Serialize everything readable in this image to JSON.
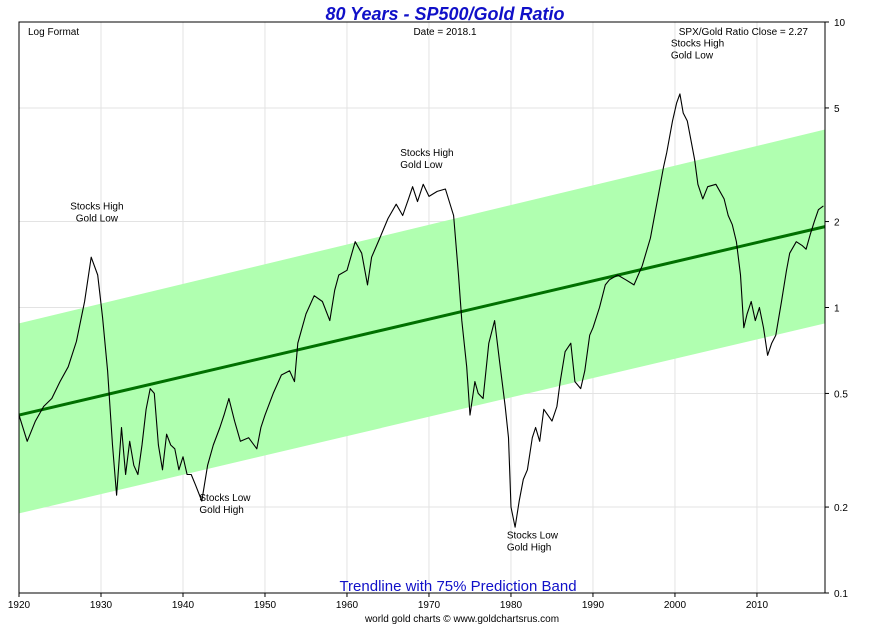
{
  "chart_data": {
    "type": "line",
    "title": "80 Years - SP500/Gold Ratio",
    "top_left_note": "Log Format",
    "date_note": "Date = 2018.1",
    "close_note": "SPX/Gold Ratio Close = 2.27",
    "band_label": "Trendline with 75% Prediction Band",
    "footer": "world gold charts © www.goldchartsrus.com",
    "y_scale": "log",
    "ylim": [
      0.1,
      10
    ],
    "xlim": [
      1920,
      2018.3
    ],
    "x_ticks": [
      1920,
      1930,
      1940,
      1950,
      1960,
      1970,
      1980,
      1990,
      2000,
      2010
    ],
    "x_tick_labels": [
      "1920",
      "1930",
      "1940",
      "1950",
      "1960",
      "1970",
      "1980",
      "1990",
      "2000",
      "2010"
    ],
    "y_ticks": [
      10,
      5,
      2,
      1,
      0.5,
      0.2,
      0.1
    ],
    "y_tick_labels": [
      "10",
      "5",
      "2",
      "1",
      "0.5",
      "0.2",
      "0.1"
    ],
    "colors": {
      "title": "#1010c8",
      "band_label": "#1010c8",
      "band_fill": "#b0ffb0",
      "trend": "#007000",
      "ratio_line": "#000000",
      "grid": "#e3e3e3"
    },
    "trendline": {
      "name": "Trendline",
      "x": [
        1920,
        2018.3
      ],
      "y": [
        0.42,
        1.92
      ]
    },
    "band": {
      "name": "75% Prediction Band",
      "x": [
        1920,
        2018.3
      ],
      "upper": [
        0.88,
        4.2
      ],
      "lower": [
        0.19,
        0.88
      ]
    },
    "annotations": [
      {
        "lines": [
          "Stocks High",
          "Gold Low"
        ],
        "x": 1929.5,
        "y": 2.2,
        "anchor": "middle"
      },
      {
        "lines": [
          "Stocks Low",
          "Gold High"
        ],
        "x": 1942,
        "y": 0.21,
        "anchor": "start"
      },
      {
        "lines": [
          "Stocks High",
          "Gold Low"
        ],
        "x": 1966.5,
        "y": 3.4,
        "anchor": "start"
      },
      {
        "lines": [
          "Stocks Low",
          "Gold High"
        ],
        "x": 1979.5,
        "y": 0.155,
        "anchor": "start"
      },
      {
        "lines": [
          "Stocks High",
          "Gold Low"
        ],
        "x": 1999.5,
        "y": 8.2,
        "anchor": "start"
      }
    ],
    "series": [
      {
        "name": "SPX/Gold Ratio",
        "x": [
          1920,
          1921,
          1922,
          1923,
          1924,
          1925,
          1926,
          1927,
          1928,
          1928.8,
          1929.6,
          1930.2,
          1930.8,
          1931.4,
          1931.9,
          1932.5,
          1933,
          1933.5,
          1934,
          1934.5,
          1935,
          1935.5,
          1936,
          1936.5,
          1937,
          1937.5,
          1938,
          1938.5,
          1939,
          1939.5,
          1940,
          1940.5,
          1941,
          1941.5,
          1942.3,
          1943,
          1943.7,
          1944.5,
          1945,
          1945.6,
          1946.3,
          1947,
          1948,
          1949,
          1949.5,
          1950,
          1951,
          1952,
          1953,
          1953.6,
          1954,
          1955,
          1956,
          1957,
          1957.9,
          1958.5,
          1959,
          1960,
          1961,
          1961.8,
          1962.5,
          1963,
          1964,
          1965,
          1966,
          1966.8,
          1967.5,
          1968,
          1968.6,
          1969.3,
          1970,
          1971,
          1972,
          1973,
          1973.6,
          1974,
          1974.6,
          1975,
          1975.6,
          1976,
          1976.6,
          1977.3,
          1978,
          1978.6,
          1979.3,
          1979.7,
          1980,
          1980.5,
          1981,
          1981.5,
          1982,
          1982.6,
          1983,
          1983.5,
          1984,
          1985,
          1985.6,
          1986,
          1986.6,
          1987.3,
          1987.8,
          1988.5,
          1989,
          1989.6,
          1990,
          1990.8,
          1991.5,
          1992,
          1993,
          1994,
          1995,
          1996,
          1997,
          1998,
          1998.6,
          1999,
          1999.7,
          2000.2,
          2000.6,
          2001,
          2001.5,
          2002,
          2002.4,
          2002.8,
          2003.4,
          2004,
          2005,
          2006,
          2006.5,
          2007,
          2007.5,
          2008,
          2008.4,
          2008.8,
          2009.3,
          2009.8,
          2010.3,
          2010.8,
          2011.3,
          2011.8,
          2012.3,
          2013,
          2013.6,
          2014,
          2014.8,
          2015.5,
          2016,
          2016.5,
          2017,
          2017.5,
          2018.1
        ],
        "y": [
          0.42,
          0.34,
          0.4,
          0.45,
          0.48,
          0.55,
          0.62,
          0.76,
          1.05,
          1.5,
          1.3,
          0.92,
          0.6,
          0.33,
          0.22,
          0.38,
          0.26,
          0.34,
          0.28,
          0.26,
          0.33,
          0.44,
          0.52,
          0.5,
          0.33,
          0.27,
          0.36,
          0.33,
          0.32,
          0.27,
          0.3,
          0.26,
          0.26,
          0.24,
          0.21,
          0.28,
          0.33,
          0.38,
          0.42,
          0.48,
          0.4,
          0.34,
          0.35,
          0.32,
          0.38,
          0.42,
          0.5,
          0.58,
          0.6,
          0.55,
          0.75,
          0.95,
          1.1,
          1.05,
          0.9,
          1.15,
          1.3,
          1.35,
          1.7,
          1.55,
          1.2,
          1.5,
          1.75,
          2.05,
          2.3,
          2.1,
          2.4,
          2.65,
          2.35,
          2.7,
          2.45,
          2.55,
          2.6,
          2.1,
          1.3,
          0.9,
          0.62,
          0.42,
          0.55,
          0.5,
          0.48,
          0.75,
          0.9,
          0.65,
          0.45,
          0.35,
          0.2,
          0.17,
          0.21,
          0.25,
          0.27,
          0.35,
          0.38,
          0.34,
          0.44,
          0.4,
          0.45,
          0.55,
          0.7,
          0.75,
          0.55,
          0.52,
          0.6,
          0.8,
          0.85,
          1.0,
          1.2,
          1.25,
          1.3,
          1.25,
          1.2,
          1.4,
          1.75,
          2.5,
          3.1,
          3.5,
          4.5,
          5.2,
          5.6,
          4.8,
          4.5,
          3.8,
          3.3,
          2.7,
          2.4,
          2.65,
          2.7,
          2.4,
          2.1,
          1.95,
          1.7,
          1.3,
          0.85,
          0.95,
          1.05,
          0.9,
          1.0,
          0.85,
          0.68,
          0.75,
          0.8,
          1.05,
          1.35,
          1.55,
          1.7,
          1.65,
          1.6,
          1.8,
          2.0,
          2.2,
          2.27
        ]
      }
    ]
  }
}
